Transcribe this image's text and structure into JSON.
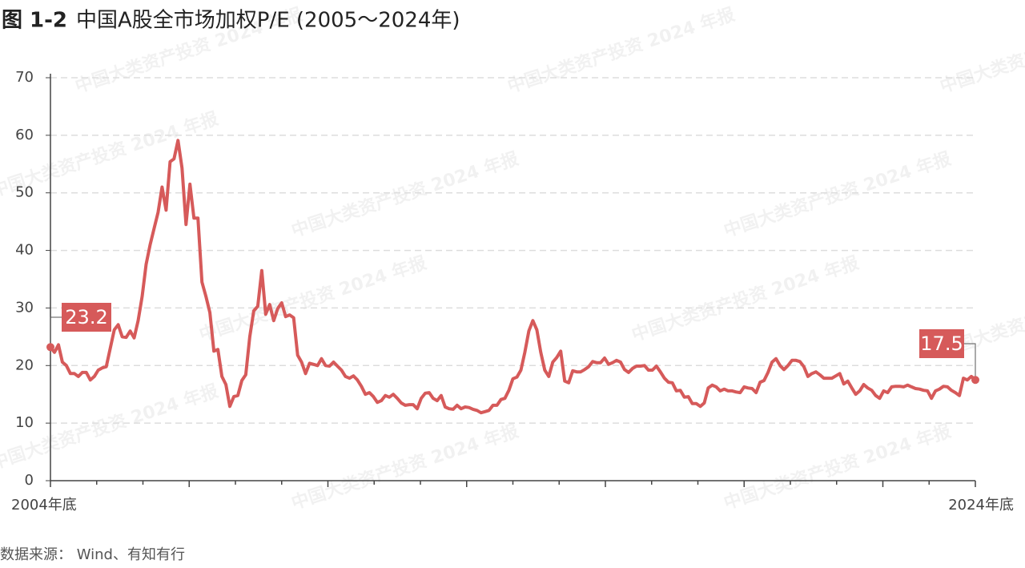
{
  "chart_data": {
    "type": "line",
    "figure_label": "图 1-2",
    "title": "中国A股全市场加权P/E (2005～2024年)",
    "source": "数据来源：  Wind、有知有行",
    "watermark": "中国大类资产投资 2024 年报",
    "color": "#d65a5a",
    "grid": true,
    "ylim": [
      0,
      70
    ],
    "yticks": [
      0,
      10,
      20,
      30,
      40,
      50,
      60,
      70
    ],
    "categories": [
      "2004年底",
      null,
      null,
      null,
      null,
      null,
      null,
      null,
      null,
      null,
      null,
      null,
      null,
      null,
      null,
      null,
      null,
      null,
      null,
      null,
      null,
      null,
      null,
      null,
      null,
      null,
      null,
      null,
      null,
      null,
      null,
      null,
      null,
      null,
      null,
      null,
      null,
      null,
      null,
      null,
      null,
      null,
      null,
      null,
      null,
      null,
      null,
      null,
      null,
      null,
      null,
      null,
      null,
      null,
      null,
      null,
      null,
      null,
      null,
      null,
      null,
      null,
      null,
      null,
      null,
      null,
      null,
      null,
      null,
      null,
      null,
      null,
      null,
      null,
      null,
      null,
      null,
      null,
      null,
      null,
      null,
      null,
      null,
      null,
      null,
      null,
      null,
      null,
      null,
      null,
      null,
      null,
      null,
      null,
      null,
      null,
      null,
      null,
      null,
      null,
      null,
      null,
      null,
      null,
      null,
      null,
      null,
      null,
      null,
      null,
      null,
      null,
      null,
      null,
      null,
      null,
      null,
      null,
      null,
      null,
      null,
      null,
      null,
      null,
      null,
      null,
      null,
      null,
      null,
      null,
      null,
      null,
      null,
      null,
      null,
      null,
      null,
      null,
      null,
      null,
      null,
      null,
      null,
      null,
      null,
      null,
      null,
      null,
      null,
      null,
      null,
      null,
      null,
      null,
      null,
      null,
      null,
      null,
      null,
      null,
      null,
      null,
      null,
      null,
      null,
      null,
      null,
      null,
      null,
      null,
      null,
      null,
      null,
      null,
      null,
      null,
      null,
      null,
      null,
      null,
      null,
      null,
      null,
      null,
      null,
      null,
      null,
      null,
      null,
      null,
      null,
      null,
      null,
      null,
      null,
      null,
      null,
      null,
      null,
      null,
      null,
      null,
      null,
      null,
      null,
      null,
      null,
      null,
      null,
      null,
      null,
      null,
      null,
      null,
      null,
      null,
      null,
      null,
      null,
      null,
      null,
      null,
      null,
      null,
      null,
      null,
      null,
      null,
      null,
      null,
      null,
      null,
      "2024年底"
    ],
    "values": [
      23.2,
      22.3,
      23.6,
      20.6,
      20,
      18.6,
      18.6,
      18.1,
      18.8,
      18.8,
      17.5,
      18.1,
      19.2,
      19.6,
      19.8,
      23,
      26.2,
      27.1,
      25,
      24.9,
      26,
      24.8,
      27.8,
      32,
      37.6,
      41,
      43.8,
      46.6,
      51,
      47,
      55.4,
      55.9,
      59.1,
      54.3,
      44.5,
      51.5,
      45.6,
      45.6,
      34.5,
      32,
      29.2,
      22.5,
      22.8,
      18.1,
      16.7,
      12.9,
      14.6,
      14.8,
      17.4,
      18.4,
      25,
      29.5,
      30.3,
      36.5,
      28.9,
      30.6,
      27.8,
      29.9,
      30.9,
      28.5,
      28.8,
      28.3,
      21.8,
      20.6,
      18.6,
      20.4,
      20.2,
      20,
      21.2,
      20,
      19.9,
      20.6,
      19.9,
      19.2,
      18.1,
      17.8,
      18.2,
      17.5,
      16.4,
      15,
      15.3,
      14.6,
      13.6,
      13.9,
      14.8,
      14.5,
      15,
      14.3,
      13.5,
      13.1,
      13.2,
      13.2,
      12.5,
      14.3,
      15.2,
      15.3,
      14.3,
      13.9,
      14.8,
      12.8,
      12.5,
      12.4,
      13.1,
      12.5,
      12.8,
      12.7,
      12.4,
      12.2,
      11.8,
      12,
      12.2,
      13.1,
      13.1,
      14.1,
      14.3,
      15.7,
      17.7,
      18,
      19.2,
      22.3,
      26,
      27.8,
      26.2,
      22.3,
      19.2,
      18.1,
      20.6,
      21.4,
      22.5,
      17.3,
      17,
      19.1,
      18.9,
      18.9,
      19.3,
      19.8,
      20.7,
      20.5,
      20.5,
      21.3,
      20.2,
      20.5,
      20.9,
      20.6,
      19.3,
      18.8,
      19.5,
      19.9,
      19.9,
      20,
      19.2,
      19.2,
      19.9,
      18.9,
      17.8,
      17.1,
      17,
      15.6,
      15.7,
      14.5,
      14.6,
      13.4,
      13.4,
      12.9,
      13.5,
      16.1,
      16.6,
      16.3,
      15.6,
      15.9,
      15.6,
      15.6,
      15.4,
      15.3,
      16.3,
      16.1,
      16,
      15.3,
      17.1,
      17.4,
      18.8,
      20.6,
      21.2,
      20,
      19.3,
      20,
      20.9,
      20.9,
      20.7,
      19.8,
      18.1,
      18.6,
      18.9,
      18.4,
      17.8,
      17.8,
      17.8,
      18.2,
      18.6,
      16.8,
      17.3,
      16.1,
      15,
      15.6,
      16.7,
      16.1,
      15.7,
      14.8,
      14.3,
      15.6,
      15.3,
      16.3,
      16.4,
      16.4,
      16.3,
      16.6,
      16.3,
      16,
      15.9,
      15.7,
      15.6,
      14.3,
      15.6,
      15.9,
      16.4,
      16.3,
      15.7,
      15.3,
      14.8,
      17.8,
      17.5,
      18.1,
      17.5
    ]
  }
}
